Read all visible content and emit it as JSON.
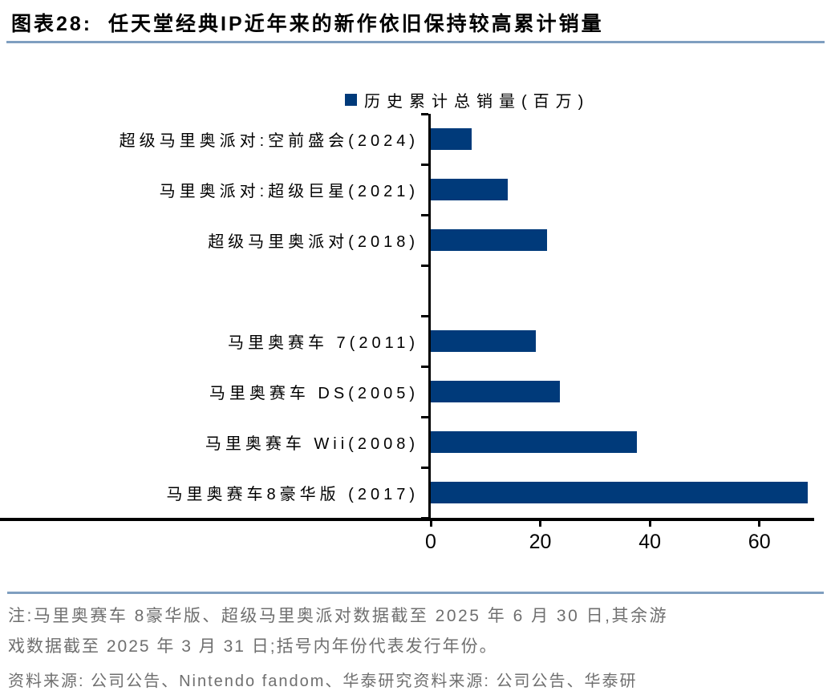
{
  "header": {
    "title": "图表28:  任天堂经典IP近年来的新作依旧保持较高累计销量"
  },
  "chart_data": {
    "type": "bar",
    "orientation": "horizontal",
    "title": "任天堂经典IP近年来的新作依旧保持较高累计销量",
    "legend": "历史累计总销量(百万)",
    "legend_position": "top",
    "categories": [
      "超级马里奥派对:空前盛会(2024)",
      "马里奥派对:超级巨星(2021)",
      "超级马里奥派对(2018)",
      "",
      "马里奥赛车 7(2011)",
      "马里奥赛车 DS(2005)",
      "马里奥赛车 Wii(2008)",
      "马里奥赛车8豪华版 (2017)"
    ],
    "values": [
      7.4,
      14.0,
      21.3,
      null,
      19.2,
      23.6,
      37.6,
      68.8
    ],
    "xlabel": "",
    "ylabel": "",
    "xticks": [
      0,
      20,
      40,
      60
    ],
    "xlim": [
      0,
      70
    ],
    "grid": false,
    "bar_color": "#003a7a"
  },
  "footer": {
    "note_line1": "注:马里奥赛车 8豪华版、超级马里奥派对数据截至 2025 年 6 月 30 日,其余游",
    "note_line2": "戏数据截至 2025 年 3 月 31 日;括号内年份代表发行年份。",
    "source": "资料来源: 公司公告、Nintendo fandom、华泰研究资料来源: 公司公告、华泰研"
  },
  "colors": {
    "bar": "#003a7a",
    "accent_line": "#7f9fc0",
    "note_text": "#6f6f6f",
    "axis": "#000000"
  }
}
